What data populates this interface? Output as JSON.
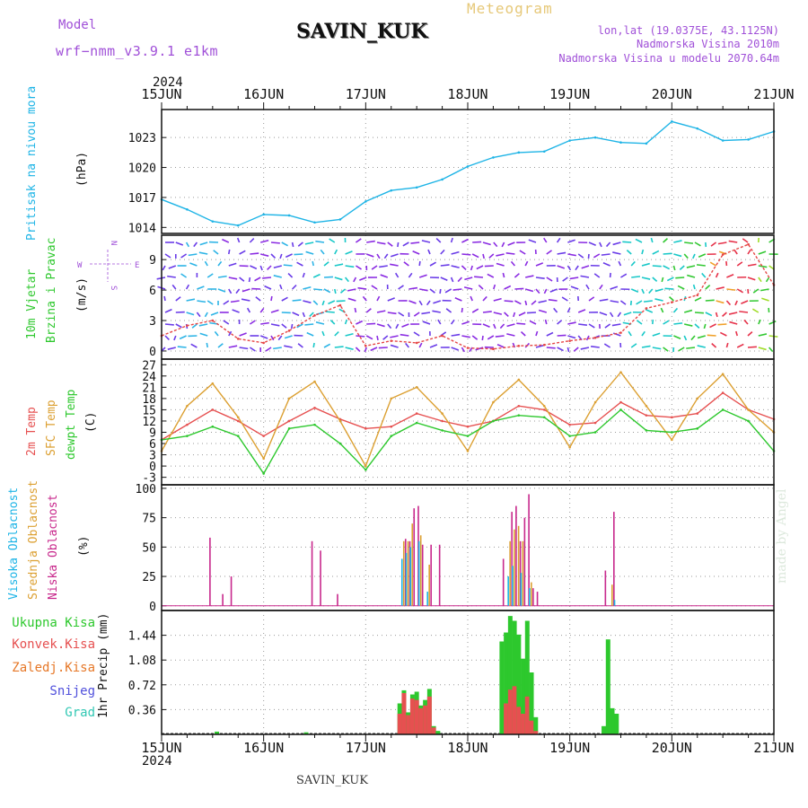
{
  "header": {
    "model_label": "Model",
    "model_name": "wrf−nmm_v3.9.1  e1km",
    "station": "SAVIN_KUK",
    "product": "Meteogram",
    "lonlat": "lon,lat (19.0375E, 43.1125N)",
    "elevation": "Nadmorska Visina 2010m",
    "model_elevation": "Nadmorska Visina u modelu 2070.64m",
    "footer_station": "SAVIN_KUK",
    "credit": "made by Angel",
    "year": "2024"
  },
  "colors": {
    "pressure": "#1eb4e6",
    "wind_label": "#2fc82f",
    "dir_label": "#a050d8",
    "temp2m": "#e65050",
    "sfc_temp": "#dca032",
    "dewpoint": "#2dc82d",
    "high_cloud": "#1eb4e6",
    "mid_cloud": "#dca032",
    "low_cloud": "#c8288c",
    "total_precip": "#2dc82d",
    "convective": "#e65050",
    "freezing": "#e67828",
    "snow": "#5050dc",
    "hail": "#32c8b4"
  },
  "time_axis": {
    "ticks": [
      "15JUN",
      "16JUN",
      "17JUN",
      "18JUN",
      "19JUN",
      "20JUN",
      "21JUN"
    ],
    "start": "2024-06-15T00:00",
    "end": "2024-06-21T00:00"
  },
  "legend": {
    "wind_compass": [
      "N",
      "S",
      "E",
      "W"
    ]
  },
  "chart_data": [
    {
      "type": "line",
      "panel": "pressure",
      "ylabel": [
        "Pritisak na nivou mora",
        "(hPa)"
      ],
      "yticks": [
        1014,
        1017,
        1020,
        1023
      ],
      "ylim": [
        1013.4,
        1025.8
      ],
      "x": [
        "2024-06-15T00",
        "2024-06-15T06",
        "2024-06-15T12",
        "2024-06-15T18",
        "2024-06-16T00",
        "2024-06-16T06",
        "2024-06-16T12",
        "2024-06-16T18",
        "2024-06-17T00",
        "2024-06-17T06",
        "2024-06-17T12",
        "2024-06-17T18",
        "2024-06-18T00",
        "2024-06-18T06",
        "2024-06-18T12",
        "2024-06-18T18",
        "2024-06-19T00",
        "2024-06-19T06",
        "2024-06-19T12",
        "2024-06-19T18",
        "2024-06-20T00",
        "2024-06-20T06",
        "2024-06-20T12",
        "2024-06-20T18",
        "2024-06-21T00"
      ],
      "series": [
        {
          "name": "Pritisak na nivou mora",
          "values": [
            1016.8,
            1015.8,
            1014.6,
            1014.2,
            1015.3,
            1015.2,
            1014.5,
            1014.8,
            1016.6,
            1017.7,
            1018.0,
            1018.8,
            1020.1,
            1021.0,
            1021.5,
            1021.6,
            1022.7,
            1023.0,
            1022.5,
            1022.4,
            1024.6,
            1023.9,
            1022.7,
            1022.8,
            1023.6
          ]
        }
      ]
    },
    {
      "type": "line",
      "panel": "wind",
      "ylabel": [
        "10m Vjetar",
        "Brzina i Pravac",
        "(m/s)"
      ],
      "yticks": [
        0,
        3,
        6,
        9
      ],
      "ylim": [
        -0.8,
        11.4
      ],
      "x": [
        "2024-06-15T00",
        "2024-06-15T06",
        "2024-06-15T12",
        "2024-06-15T18",
        "2024-06-16T00",
        "2024-06-16T06",
        "2024-06-16T12",
        "2024-06-16T18",
        "2024-06-17T00",
        "2024-06-17T06",
        "2024-06-17T12",
        "2024-06-17T18",
        "2024-06-18T00",
        "2024-06-18T06",
        "2024-06-18T12",
        "2024-06-18T18",
        "2024-06-19T00",
        "2024-06-19T06",
        "2024-06-19T12",
        "2024-06-19T18",
        "2024-06-20T00",
        "2024-06-20T06",
        "2024-06-20T12",
        "2024-06-20T18",
        "2024-06-21T00"
      ],
      "series": [
        {
          "name": "10m Vjetar",
          "values": [
            1.5,
            2.5,
            3.0,
            1.2,
            0.8,
            2.0,
            3.5,
            4.5,
            0.5,
            1.0,
            0.8,
            1.5,
            0.3,
            0.2,
            0.5,
            0.6,
            1.0,
            1.3,
            1.8,
            4.2,
            4.8,
            5.5,
            9.5,
            10.5,
            6.5
          ]
        }
      ]
    },
    {
      "type": "line",
      "panel": "temperature",
      "ylabel": [
        "2m Temp",
        "SFC Temp",
        "dewpt Temp",
        "(C)"
      ],
      "yticks": [
        -3,
        0,
        3,
        6,
        9,
        12,
        15,
        18,
        21,
        24,
        27
      ],
      "ylim": [
        -5,
        28.5
      ],
      "x": [
        "2024-06-15T00",
        "2024-06-15T06",
        "2024-06-15T12",
        "2024-06-15T18",
        "2024-06-16T00",
        "2024-06-16T06",
        "2024-06-16T12",
        "2024-06-16T18",
        "2024-06-17T00",
        "2024-06-17T06",
        "2024-06-17T12",
        "2024-06-17T18",
        "2024-06-18T00",
        "2024-06-18T06",
        "2024-06-18T12",
        "2024-06-18T18",
        "2024-06-19T00",
        "2024-06-19T06",
        "2024-06-19T12",
        "2024-06-19T18",
        "2024-06-20T00",
        "2024-06-20T06",
        "2024-06-20T12",
        "2024-06-20T18",
        "2024-06-21T00"
      ],
      "series": [
        {
          "name": "2m Temp",
          "values": [
            7.0,
            11.0,
            15.0,
            12.0,
            8.0,
            12.0,
            15.5,
            12.5,
            10.0,
            10.5,
            14.0,
            12.0,
            10.5,
            12.0,
            16.0,
            15.0,
            11.0,
            11.5,
            17.0,
            13.5,
            13.0,
            14.0,
            19.5,
            15.0,
            12.5
          ]
        },
        {
          "name": "SFC Temp",
          "values": [
            4.0,
            16.0,
            22.0,
            13.0,
            2.0,
            18.0,
            22.5,
            12.0,
            0.0,
            18.0,
            21.0,
            14.0,
            4.0,
            17.0,
            23.0,
            16.0,
            5.0,
            17.0,
            25.0,
            16.0,
            7.0,
            18.0,
            24.5,
            15.0,
            9.0
          ]
        },
        {
          "name": "dewpt Temp",
          "values": [
            7.0,
            8.0,
            10.5,
            8.0,
            -2.0,
            10.0,
            11.0,
            6.0,
            -1.0,
            8.0,
            11.5,
            9.5,
            8.0,
            12.0,
            13.5,
            13.0,
            8.0,
            9.0,
            15.0,
            9.5,
            9.0,
            10.0,
            15.0,
            12.0,
            4.0
          ]
        }
      ]
    },
    {
      "type": "bar",
      "panel": "clouds",
      "ylabel": [
        "Visoka Oblacnost",
        "Srednja Oblacnost",
        "Niska Oblacnost",
        "(%)"
      ],
      "yticks": [
        0,
        25,
        50,
        75,
        100
      ],
      "ylim": [
        -4,
        103
      ],
      "x": [
        "2024-06-15T11",
        "2024-06-15T14",
        "2024-06-15T16",
        "2024-06-16T11",
        "2024-06-16T13",
        "2024-06-16T17",
        "2024-06-17T09",
        "2024-06-17T10",
        "2024-06-17T11",
        "2024-06-17T12",
        "2024-06-17T13",
        "2024-06-17T14",
        "2024-06-17T15",
        "2024-06-17T17",
        "2024-06-18T08",
        "2024-06-18T10",
        "2024-06-18T11",
        "2024-06-18T12",
        "2024-06-18T13",
        "2024-06-18T14",
        "2024-06-18T15",
        "2024-06-18T16",
        "2024-06-19T08",
        "2024-06-19T10",
        "2024-06-19T11"
      ],
      "series": [
        {
          "name": "Visoka Oblacnost",
          "values": [
            0,
            0,
            0,
            0,
            0,
            0,
            40,
            45,
            50,
            0,
            55,
            0,
            12,
            0,
            0,
            25,
            34,
            0,
            28,
            0,
            15,
            0,
            0,
            0,
            5
          ]
        },
        {
          "name": "Srednja Oblacnost",
          "values": [
            0,
            0,
            0,
            0,
            0,
            0,
            55,
            55,
            70,
            0,
            60,
            0,
            35,
            0,
            0,
            55,
            65,
            68,
            55,
            0,
            20,
            0,
            0,
            18,
            0
          ]
        },
        {
          "name": "Niska Oblacnost",
          "values": [
            58,
            10,
            25,
            55,
            47,
            10,
            57,
            55,
            83,
            85,
            52,
            0,
            52,
            52,
            40,
            80,
            85,
            55,
            75,
            95,
            15,
            12,
            30,
            80,
            0
          ]
        }
      ]
    },
    {
      "type": "bar",
      "panel": "precipitation",
      "ylabel": [
        "1hr Precip (mm)"
      ],
      "yticks": [
        0.36,
        0.72,
        1.08,
        1.44
      ],
      "ylim": [
        0,
        1.8
      ],
      "x": [
        "2024-06-15T13",
        "2024-06-16T10",
        "2024-06-17T08",
        "2024-06-17T09",
        "2024-06-17T10",
        "2024-06-17T11",
        "2024-06-17T12",
        "2024-06-17T13",
        "2024-06-17T14",
        "2024-06-17T15",
        "2024-06-17T16",
        "2024-06-17T17",
        "2024-06-18T08",
        "2024-06-18T09",
        "2024-06-18T10",
        "2024-06-18T11",
        "2024-06-18T12",
        "2024-06-18T13",
        "2024-06-18T14",
        "2024-06-18T15",
        "2024-06-18T16",
        "2024-06-19T08",
        "2024-06-19T09",
        "2024-06-19T10",
        "2024-06-19T11"
      ],
      "series": [
        {
          "name": "Ukupna Kisa",
          "values": [
            0.04,
            0.03,
            0.45,
            0.64,
            0.32,
            0.58,
            0.62,
            0.42,
            0.5,
            0.66,
            0.12,
            0.05,
            1.35,
            1.48,
            1.72,
            1.65,
            1.45,
            1.1,
            1.65,
            0.9,
            0.25,
            0.12,
            1.38,
            0.38,
            0.3
          ]
        },
        {
          "name": "Konvek.Kisa",
          "values": [
            0,
            0,
            0.3,
            0.6,
            0.28,
            0.52,
            0.5,
            0.38,
            0.42,
            0.55,
            0.1,
            0,
            0,
            0.45,
            0.65,
            0.7,
            0.4,
            0.3,
            0.55,
            0.2,
            0.05,
            0,
            0,
            0,
            0
          ]
        }
      ]
    }
  ],
  "precip_legend": [
    "Ukupna  Kisa",
    "Konvek.Kisa",
    "Zaledj.Kisa",
    "Snijeg",
    "Grad"
  ]
}
